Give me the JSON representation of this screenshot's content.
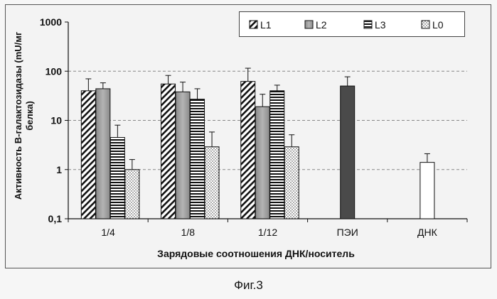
{
  "chart_data": {
    "type": "bar",
    "yscale": "log",
    "ylim": [
      0.1,
      1000
    ],
    "ytick_labels": [
      "0,1",
      "1",
      "10",
      "100",
      "1000"
    ],
    "ytick_values": [
      0.1,
      1,
      10,
      100,
      1000
    ],
    "ylabel": "Активность B-галактозидазы (mU/мг белка)",
    "xlabel": "Зарядовые соотношения ДНК/носитель",
    "categories": [
      "1/4",
      "1/8",
      "1/12",
      "ПЭИ",
      "ДНК"
    ],
    "grid": true,
    "legend": "top-right",
    "series": [
      {
        "name": "L1",
        "pattern": "diagonal",
        "values": [
          40,
          55,
          62,
          null,
          null
        ],
        "errors": [
          70,
          82,
          115,
          null,
          null
        ]
      },
      {
        "name": "L2",
        "pattern": "gray",
        "values": [
          44,
          38,
          19,
          null,
          null
        ],
        "errors": [
          58,
          60,
          34,
          null,
          null
        ]
      },
      {
        "name": "L3",
        "pattern": "horizontal",
        "values": [
          4.5,
          27,
          40,
          null,
          null
        ],
        "errors": [
          8,
          44,
          52,
          null,
          null
        ]
      },
      {
        "name": "L0",
        "pattern": "dotted",
        "values": [
          1,
          2.9,
          2.9,
          null,
          null
        ],
        "errors": [
          1.6,
          5.8,
          5.1,
          null,
          null
        ]
      }
    ],
    "extra_bars": [
      {
        "category": "ПЭИ",
        "value": 50,
        "error": 77,
        "color": "#4a4a4a"
      },
      {
        "category": "ДНК",
        "value": 1.4,
        "error": 2.1,
        "color": "#ffffff"
      }
    ]
  },
  "caption": "Фиг.3"
}
